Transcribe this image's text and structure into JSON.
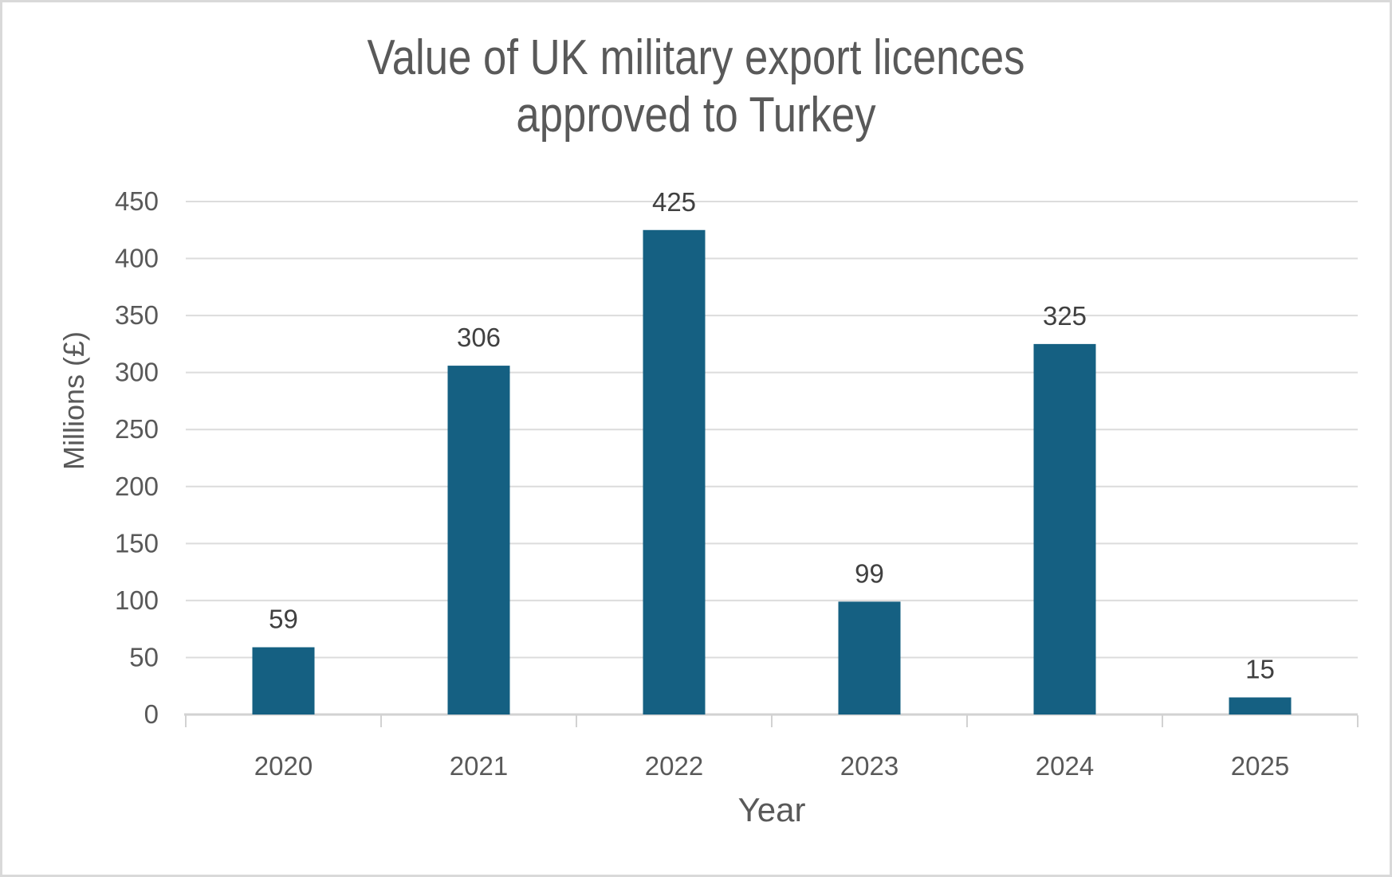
{
  "title": {
    "line1": "Value of UK military export licences",
    "line2": "approved to Turkey"
  },
  "chart_data": {
    "type": "bar",
    "title": "Value of UK military export licences approved to Turkey",
    "categories": [
      "2020",
      "2021",
      "2022",
      "2023",
      "2024",
      "2025"
    ],
    "values": [
      59,
      306,
      425,
      99,
      325,
      15
    ],
    "data_labels": [
      "59",
      "306",
      "425",
      "99",
      "325",
      "15"
    ],
    "xlabel": "Year",
    "ylabel": "Millions (£)",
    "ylim": [
      0,
      450
    ],
    "yticks": [
      0,
      50,
      100,
      150,
      200,
      250,
      300,
      350,
      400,
      450
    ],
    "grid": "horizontal",
    "legend": "none"
  },
  "colors": {
    "bar": "#156082",
    "gridline": "#dcdcdc",
    "axis_line": "#d2d2d2",
    "text": "#595959",
    "data_label": "#404040",
    "canvas_border": "#d9d9d9",
    "background": "#ffffff"
  }
}
